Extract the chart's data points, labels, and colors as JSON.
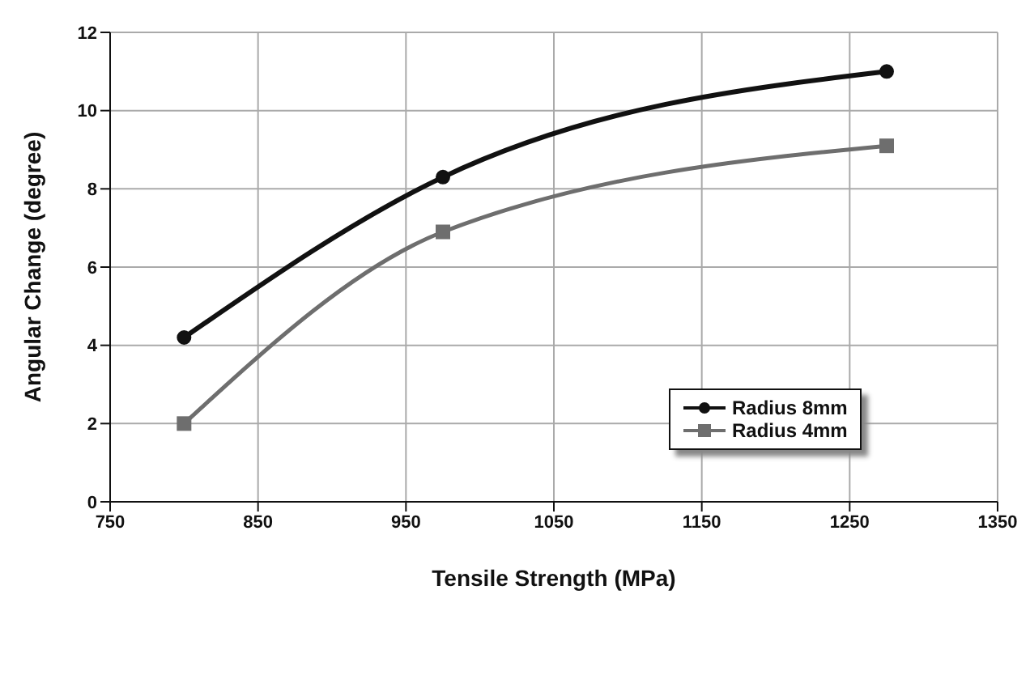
{
  "chart_data": {
    "type": "line",
    "xlabel": "Tensile Strength (MPa)",
    "ylabel": "Angular Change (degree)",
    "x": [
      800,
      975,
      1275
    ],
    "series": [
      {
        "name": "Radius 8mm",
        "color": "#111111",
        "values": [
          4.2,
          8.3,
          11
        ],
        "marker": "circle"
      },
      {
        "name": "Radius 4mm",
        "color": "#6e6e6e",
        "values": [
          2,
          6.9,
          9.1
        ],
        "marker": "square"
      }
    ],
    "xlim": [
      750,
      1350
    ],
    "xticks": [
      750,
      850,
      950,
      1050,
      1150,
      1250,
      1350
    ],
    "ylim": [
      0,
      12
    ],
    "yticks": [
      0,
      2,
      4,
      6,
      8,
      10,
      12
    ],
    "grid": true,
    "legend": "right",
    "line_style": "solid"
  }
}
